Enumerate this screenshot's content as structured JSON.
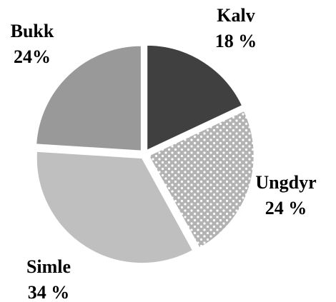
{
  "chart_data": {
    "type": "pie",
    "categories": [
      "Kalv",
      "Ungdyr",
      "Simle",
      "Bukk"
    ],
    "values": [
      18,
      24,
      34,
      24
    ],
    "value_labels": [
      "18 %",
      "24 %",
      "34 %",
      "24%"
    ],
    "colors": [
      "#404040",
      "#b3b3b3",
      "#bfbfbf",
      "#999999"
    ],
    "patterns": [
      "none",
      "dots",
      "none",
      "none"
    ]
  }
}
